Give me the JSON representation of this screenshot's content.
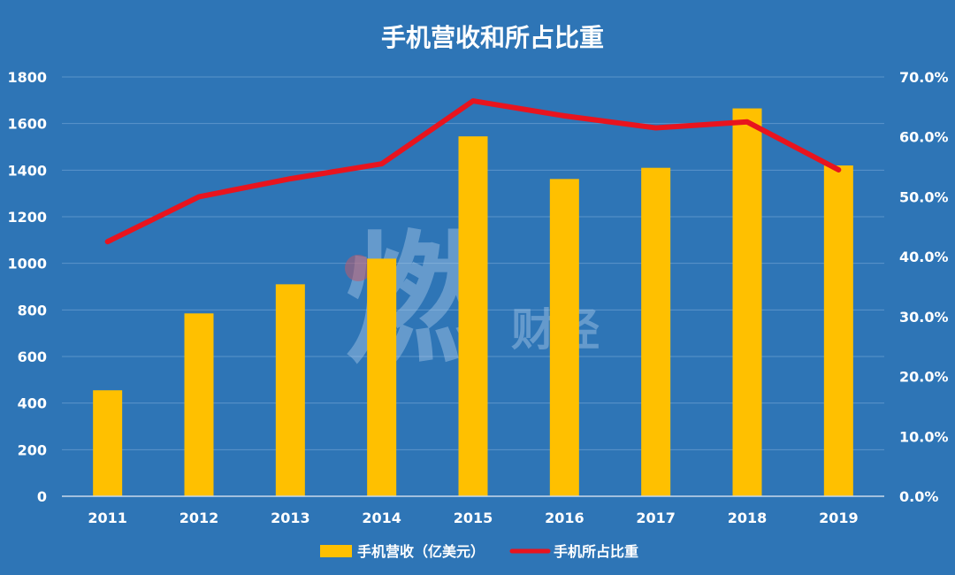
{
  "chart_data": {
    "type": "bar",
    "title": "手机营收和所占比重",
    "categories": [
      "2011",
      "2012",
      "2013",
      "2014",
      "2015",
      "2016",
      "2017",
      "2018",
      "2019"
    ],
    "series": [
      {
        "name": "手机营收（亿美元）",
        "type": "bar",
        "axis": "left",
        "values": [
          455,
          785,
          910,
          1020,
          1545,
          1362,
          1410,
          1665,
          1420
        ]
      },
      {
        "name": "手机所占比重",
        "type": "line",
        "axis": "right",
        "values": [
          0.425,
          0.5,
          0.53,
          0.555,
          0.66,
          0.635,
          0.615,
          0.625,
          0.545
        ]
      }
    ],
    "y_left": {
      "min": 0,
      "max": 1800,
      "step": 200,
      "tick_labels": [
        "0",
        "200",
        "400",
        "600",
        "800",
        "1000",
        "1200",
        "1400",
        "1600",
        "1800"
      ]
    },
    "y_right": {
      "min": 0,
      "max": 0.7,
      "step": 0.1,
      "tick_labels": [
        "0.0%",
        "10.0%",
        "20.0%",
        "30.0%",
        "40.0%",
        "50.0%",
        "60.0%",
        "70.0%"
      ]
    },
    "grid": true,
    "legend_position": "bottom",
    "watermark": "燃财经",
    "colors": {
      "background": "#2e75b6",
      "bar": "#ffc000",
      "line": "#e8141e",
      "gridline": "#5b95cb",
      "text": "#ffffff",
      "watermark": "#a9c7e6"
    }
  }
}
